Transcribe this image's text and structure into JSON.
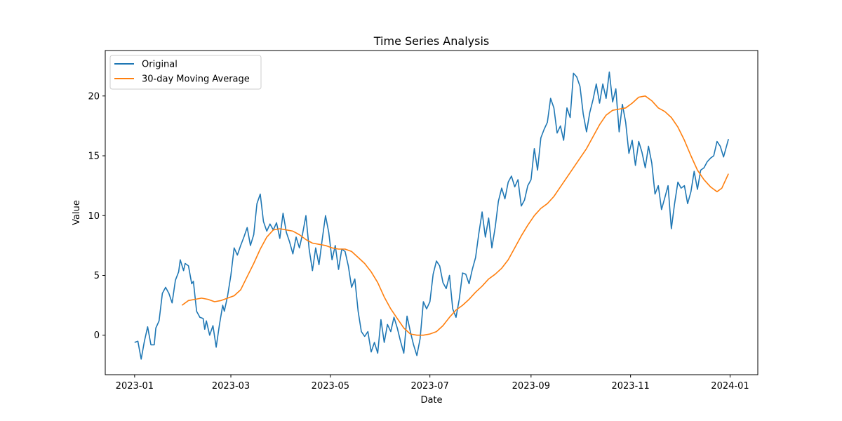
{
  "chart_data": {
    "type": "line",
    "title": "Time Series Analysis",
    "xlabel": "Date",
    "ylabel": "Value",
    "xlim": [
      "2022-12-14",
      "2024-01-18"
    ],
    "ylim": [
      -3.3,
      23.8
    ],
    "x_ticks": [
      "2023-01",
      "2023-03",
      "2023-05",
      "2023-07",
      "2023-09",
      "2023-11",
      "2024-01"
    ],
    "y_ticks": [
      0,
      5,
      10,
      15,
      20
    ],
    "grid": false,
    "legend": {
      "placement": "top-left"
    },
    "series": [
      {
        "name": "Original",
        "color": "#1f77b4",
        "points": [
          [
            "2023-01-01",
            -0.6
          ],
          [
            "2023-01-03",
            -0.5
          ],
          [
            "2023-01-05",
            -2.0
          ],
          [
            "2023-01-07",
            -0.5
          ],
          [
            "2023-01-09",
            0.7
          ],
          [
            "2023-01-11",
            -0.8
          ],
          [
            "2023-01-13",
            -0.8
          ],
          [
            "2023-01-14",
            0.6
          ],
          [
            "2023-01-16",
            1.2
          ],
          [
            "2023-01-18",
            3.5
          ],
          [
            "2023-01-20",
            4.0
          ],
          [
            "2023-01-22",
            3.5
          ],
          [
            "2023-01-24",
            2.7
          ],
          [
            "2023-01-26",
            4.6
          ],
          [
            "2023-01-28",
            5.3
          ],
          [
            "2023-01-29",
            6.3
          ],
          [
            "2023-01-31",
            5.4
          ],
          [
            "2023-02-01",
            6.0
          ],
          [
            "2023-02-03",
            5.8
          ],
          [
            "2023-02-05",
            4.3
          ],
          [
            "2023-02-06",
            4.5
          ],
          [
            "2023-02-08",
            2.0
          ],
          [
            "2023-02-10",
            1.5
          ],
          [
            "2023-02-12",
            1.4
          ],
          [
            "2023-02-13",
            0.5
          ],
          [
            "2023-02-14",
            1.2
          ],
          [
            "2023-02-16",
            0.0
          ],
          [
            "2023-02-18",
            0.8
          ],
          [
            "2023-02-20",
            -1.0
          ],
          [
            "2023-02-22",
            0.9
          ],
          [
            "2023-02-24",
            2.5
          ],
          [
            "2023-02-25",
            2.0
          ],
          [
            "2023-02-27",
            3.3
          ],
          [
            "2023-03-01",
            5.0
          ],
          [
            "2023-03-03",
            7.3
          ],
          [
            "2023-03-05",
            6.7
          ],
          [
            "2023-03-07",
            7.5
          ],
          [
            "2023-03-09",
            8.2
          ],
          [
            "2023-03-11",
            9.0
          ],
          [
            "2023-03-13",
            7.5
          ],
          [
            "2023-03-15",
            8.4
          ],
          [
            "2023-03-17",
            11.0
          ],
          [
            "2023-03-19",
            11.8
          ],
          [
            "2023-03-21",
            9.5
          ],
          [
            "2023-03-23",
            8.7
          ],
          [
            "2023-03-25",
            9.3
          ],
          [
            "2023-03-27",
            8.8
          ],
          [
            "2023-03-29",
            9.4
          ],
          [
            "2023-03-31",
            8.1
          ],
          [
            "2023-04-02",
            10.2
          ],
          [
            "2023-04-04",
            8.6
          ],
          [
            "2023-04-06",
            7.8
          ],
          [
            "2023-04-08",
            6.8
          ],
          [
            "2023-04-10",
            8.2
          ],
          [
            "2023-04-12",
            7.3
          ],
          [
            "2023-04-14",
            8.5
          ],
          [
            "2023-04-16",
            10.0
          ],
          [
            "2023-04-18",
            7.2
          ],
          [
            "2023-04-20",
            5.4
          ],
          [
            "2023-04-22",
            7.3
          ],
          [
            "2023-04-24",
            5.9
          ],
          [
            "2023-04-26",
            8.0
          ],
          [
            "2023-04-28",
            10.0
          ],
          [
            "2023-04-30",
            8.6
          ],
          [
            "2023-05-02",
            6.3
          ],
          [
            "2023-05-04",
            7.5
          ],
          [
            "2023-05-06",
            5.5
          ],
          [
            "2023-05-08",
            7.2
          ],
          [
            "2023-05-10",
            7.0
          ],
          [
            "2023-05-12",
            5.8
          ],
          [
            "2023-05-14",
            4.0
          ],
          [
            "2023-05-16",
            4.7
          ],
          [
            "2023-05-18",
            2.0
          ],
          [
            "2023-05-20",
            0.3
          ],
          [
            "2023-05-22",
            -0.1
          ],
          [
            "2023-05-24",
            0.3
          ],
          [
            "2023-05-26",
            -1.4
          ],
          [
            "2023-05-28",
            -0.6
          ],
          [
            "2023-05-30",
            -1.5
          ],
          [
            "2023-06-01",
            1.3
          ],
          [
            "2023-06-03",
            -0.6
          ],
          [
            "2023-06-05",
            0.9
          ],
          [
            "2023-06-07",
            0.3
          ],
          [
            "2023-06-09",
            1.5
          ],
          [
            "2023-06-11",
            0.6
          ],
          [
            "2023-06-13",
            -0.5
          ],
          [
            "2023-06-15",
            -1.5
          ],
          [
            "2023-06-17",
            1.6
          ],
          [
            "2023-06-19",
            0.3
          ],
          [
            "2023-06-21",
            -0.8
          ],
          [
            "2023-06-23",
            -1.7
          ],
          [
            "2023-06-25",
            -0.3
          ],
          [
            "2023-06-27",
            2.8
          ],
          [
            "2023-06-29",
            2.2
          ],
          [
            "2023-07-01",
            2.8
          ],
          [
            "2023-07-03",
            5.1
          ],
          [
            "2023-07-05",
            6.2
          ],
          [
            "2023-07-07",
            5.8
          ],
          [
            "2023-07-09",
            4.4
          ],
          [
            "2023-07-11",
            3.9
          ],
          [
            "2023-07-13",
            5.0
          ],
          [
            "2023-07-15",
            2.2
          ],
          [
            "2023-07-17",
            1.5
          ],
          [
            "2023-07-19",
            3.0
          ],
          [
            "2023-07-21",
            5.2
          ],
          [
            "2023-07-23",
            5.1
          ],
          [
            "2023-07-25",
            4.3
          ],
          [
            "2023-07-27",
            5.5
          ],
          [
            "2023-07-29",
            6.5
          ],
          [
            "2023-07-31",
            8.5
          ],
          [
            "2023-08-02",
            10.3
          ],
          [
            "2023-08-04",
            8.2
          ],
          [
            "2023-08-06",
            9.8
          ],
          [
            "2023-08-08",
            7.3
          ],
          [
            "2023-08-10",
            9.0
          ],
          [
            "2023-08-12",
            11.2
          ],
          [
            "2023-08-14",
            12.3
          ],
          [
            "2023-08-16",
            11.4
          ],
          [
            "2023-08-18",
            12.8
          ],
          [
            "2023-08-20",
            13.3
          ],
          [
            "2023-08-22",
            12.4
          ],
          [
            "2023-08-24",
            13.0
          ],
          [
            "2023-08-26",
            10.8
          ],
          [
            "2023-08-28",
            11.3
          ],
          [
            "2023-08-30",
            12.5
          ],
          [
            "2023-09-01",
            13.0
          ],
          [
            "2023-09-03",
            15.6
          ],
          [
            "2023-09-05",
            13.8
          ],
          [
            "2023-09-07",
            16.5
          ],
          [
            "2023-09-09",
            17.2
          ],
          [
            "2023-09-11",
            17.8
          ],
          [
            "2023-09-13",
            19.8
          ],
          [
            "2023-09-15",
            19.0
          ],
          [
            "2023-09-17",
            16.9
          ],
          [
            "2023-09-19",
            17.5
          ],
          [
            "2023-09-21",
            16.3
          ],
          [
            "2023-09-23",
            19.0
          ],
          [
            "2023-09-25",
            18.2
          ],
          [
            "2023-09-27",
            21.9
          ],
          [
            "2023-09-29",
            21.6
          ],
          [
            "2023-10-01",
            20.8
          ],
          [
            "2023-10-03",
            18.5
          ],
          [
            "2023-10-05",
            17.0
          ],
          [
            "2023-10-07",
            18.6
          ],
          [
            "2023-10-09",
            19.7
          ],
          [
            "2023-10-11",
            21.0
          ],
          [
            "2023-10-13",
            19.4
          ],
          [
            "2023-10-15",
            21.0
          ],
          [
            "2023-10-17",
            19.8
          ],
          [
            "2023-10-19",
            22.0
          ],
          [
            "2023-10-21",
            19.5
          ],
          [
            "2023-10-23",
            20.6
          ],
          [
            "2023-10-25",
            17.0
          ],
          [
            "2023-10-27",
            19.3
          ],
          [
            "2023-10-29",
            17.8
          ],
          [
            "2023-10-31",
            15.2
          ],
          [
            "2023-11-02",
            16.3
          ],
          [
            "2023-11-04",
            14.2
          ],
          [
            "2023-11-06",
            16.2
          ],
          [
            "2023-11-08",
            15.3
          ],
          [
            "2023-11-10",
            14.0
          ],
          [
            "2023-11-12",
            15.8
          ],
          [
            "2023-11-14",
            14.4
          ],
          [
            "2023-11-16",
            11.8
          ],
          [
            "2023-11-18",
            12.5
          ],
          [
            "2023-11-20",
            10.5
          ],
          [
            "2023-11-22",
            11.5
          ],
          [
            "2023-11-24",
            12.5
          ],
          [
            "2023-11-26",
            8.9
          ],
          [
            "2023-11-28",
            11.0
          ],
          [
            "2023-11-30",
            12.8
          ],
          [
            "2023-12-02",
            12.3
          ],
          [
            "2023-12-04",
            12.5
          ],
          [
            "2023-12-06",
            11.0
          ],
          [
            "2023-12-08",
            12.0
          ],
          [
            "2023-12-10",
            13.7
          ],
          [
            "2023-12-12",
            12.2
          ],
          [
            "2023-12-14",
            13.8
          ],
          [
            "2023-12-16",
            14.0
          ],
          [
            "2023-12-18",
            14.5
          ],
          [
            "2023-12-20",
            14.8
          ],
          [
            "2023-12-22",
            15.0
          ],
          [
            "2023-12-24",
            16.2
          ],
          [
            "2023-12-26",
            15.8
          ],
          [
            "2023-12-28",
            14.9
          ],
          [
            "2023-12-31",
            16.4
          ]
        ]
      },
      {
        "name": "30-day Moving Average",
        "color": "#ff7f0e",
        "points": [
          [
            "2023-01-30",
            2.5
          ],
          [
            "2023-02-03",
            2.9
          ],
          [
            "2023-02-07",
            3.0
          ],
          [
            "2023-02-11",
            3.1
          ],
          [
            "2023-02-15",
            3.0
          ],
          [
            "2023-02-19",
            2.8
          ],
          [
            "2023-02-23",
            2.9
          ],
          [
            "2023-02-27",
            3.1
          ],
          [
            "2023-03-03",
            3.3
          ],
          [
            "2023-03-07",
            3.8
          ],
          [
            "2023-03-11",
            4.9
          ],
          [
            "2023-03-15",
            6.0
          ],
          [
            "2023-03-19",
            7.2
          ],
          [
            "2023-03-23",
            8.2
          ],
          [
            "2023-03-27",
            8.8
          ],
          [
            "2023-03-31",
            8.9
          ],
          [
            "2023-04-04",
            8.8
          ],
          [
            "2023-04-08",
            8.7
          ],
          [
            "2023-04-12",
            8.4
          ],
          [
            "2023-04-16",
            8.0
          ],
          [
            "2023-04-20",
            7.7
          ],
          [
            "2023-04-24",
            7.6
          ],
          [
            "2023-04-28",
            7.5
          ],
          [
            "2023-05-02",
            7.3
          ],
          [
            "2023-05-06",
            7.2
          ],
          [
            "2023-05-10",
            7.2
          ],
          [
            "2023-05-14",
            7.0
          ],
          [
            "2023-05-18",
            6.5
          ],
          [
            "2023-05-22",
            6.0
          ],
          [
            "2023-05-26",
            5.3
          ],
          [
            "2023-05-30",
            4.4
          ],
          [
            "2023-06-03",
            3.2
          ],
          [
            "2023-06-07",
            2.2
          ],
          [
            "2023-06-11",
            1.4
          ],
          [
            "2023-06-15",
            0.6
          ],
          [
            "2023-06-19",
            0.1
          ],
          [
            "2023-06-23",
            0.0
          ],
          [
            "2023-06-27",
            0.0
          ],
          [
            "2023-07-01",
            0.1
          ],
          [
            "2023-07-05",
            0.3
          ],
          [
            "2023-07-09",
            0.8
          ],
          [
            "2023-07-13",
            1.5
          ],
          [
            "2023-07-17",
            2.1
          ],
          [
            "2023-07-21",
            2.5
          ],
          [
            "2023-07-25",
            3.0
          ],
          [
            "2023-07-29",
            3.6
          ],
          [
            "2023-08-02",
            4.1
          ],
          [
            "2023-08-06",
            4.7
          ],
          [
            "2023-08-10",
            5.1
          ],
          [
            "2023-08-14",
            5.6
          ],
          [
            "2023-08-18",
            6.3
          ],
          [
            "2023-08-22",
            7.3
          ],
          [
            "2023-08-26",
            8.3
          ],
          [
            "2023-08-30",
            9.2
          ],
          [
            "2023-09-03",
            10.0
          ],
          [
            "2023-09-07",
            10.6
          ],
          [
            "2023-09-11",
            11.0
          ],
          [
            "2023-09-15",
            11.6
          ],
          [
            "2023-09-19",
            12.4
          ],
          [
            "2023-09-23",
            13.2
          ],
          [
            "2023-09-27",
            14.0
          ],
          [
            "2023-10-01",
            14.8
          ],
          [
            "2023-10-05",
            15.6
          ],
          [
            "2023-10-09",
            16.6
          ],
          [
            "2023-10-13",
            17.6
          ],
          [
            "2023-10-17",
            18.4
          ],
          [
            "2023-10-21",
            18.8
          ],
          [
            "2023-10-25",
            18.9
          ],
          [
            "2023-10-29",
            19.0
          ],
          [
            "2023-11-02",
            19.4
          ],
          [
            "2023-11-06",
            19.9
          ],
          [
            "2023-11-10",
            20.0
          ],
          [
            "2023-11-14",
            19.6
          ],
          [
            "2023-11-18",
            19.0
          ],
          [
            "2023-11-22",
            18.7
          ],
          [
            "2023-11-26",
            18.2
          ],
          [
            "2023-11-30",
            17.4
          ],
          [
            "2023-12-04",
            16.3
          ],
          [
            "2023-12-08",
            15.0
          ],
          [
            "2023-12-12",
            13.8
          ],
          [
            "2023-12-16",
            13.0
          ],
          [
            "2023-12-20",
            12.4
          ],
          [
            "2023-12-24",
            12.0
          ],
          [
            "2023-12-27",
            12.3
          ],
          [
            "2023-12-31",
            13.5
          ]
        ]
      }
    ]
  }
}
